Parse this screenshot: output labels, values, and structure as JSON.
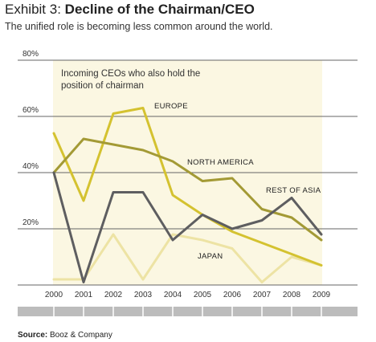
{
  "header": {
    "title_lead": "Exhibit 3:",
    "title_bold": "Decline of the Chairman/CEO",
    "subtitle": "The unified role is becoming less common around the world."
  },
  "chart_data": {
    "type": "line",
    "title": "Incoming CEOs who also hold the position of chairman",
    "title_lines": [
      "Incoming CEOs who also hold the",
      "position of chairman"
    ],
    "x": [
      "2000",
      "2001",
      "2002",
      "2003",
      "2004",
      "2005",
      "2006",
      "2007",
      "2008",
      "2009"
    ],
    "ylim": [
      0,
      80
    ],
    "yticks": [
      0,
      20,
      40,
      60,
      80
    ],
    "ytick_labels": [
      "",
      "20%",
      "40%",
      "60%",
      "80%"
    ],
    "grid": true,
    "series": [
      {
        "name": "EUROPE",
        "color": "#d4c230",
        "width": 3,
        "values": [
          54,
          30,
          61,
          63,
          32,
          25,
          19,
          15,
          11,
          7
        ]
      },
      {
        "name": "NORTH AMERICA",
        "color": "#a39a35",
        "width": 3,
        "values": [
          40,
          52,
          50,
          48,
          44,
          37,
          38,
          27,
          24,
          16
        ]
      },
      {
        "name": "REST OF ASIA",
        "color": "#5e5e60",
        "width": 3,
        "values": [
          40,
          1,
          33,
          33,
          16,
          25,
          20,
          23,
          31,
          18
        ]
      },
      {
        "name": "JAPAN",
        "color": "#ede3a4",
        "width": 3,
        "values": [
          2,
          2,
          18,
          2,
          18,
          16,
          13,
          1,
          10,
          7
        ]
      }
    ],
    "series_labels": [
      "EUROPE",
      "NORTH AMERICA",
      "REST OF ASIA",
      "JAPAN"
    ]
  },
  "footer": {
    "source_label": "Source:",
    "source_text": "Booz & Company"
  }
}
